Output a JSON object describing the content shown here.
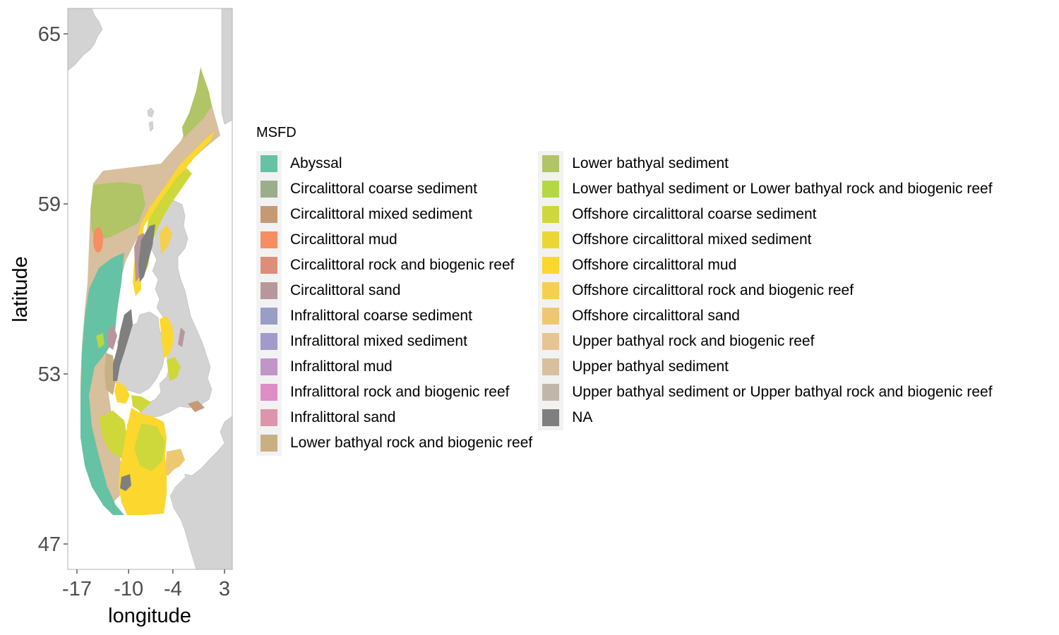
{
  "map": {
    "xlabel": "longitude",
    "ylabel": "latitude",
    "x_ticks": [
      "-17",
      "-10",
      "-4",
      "3"
    ],
    "y_ticks": [
      "65",
      "59",
      "53",
      "47"
    ],
    "x_range": [
      -18,
      4
    ],
    "y_range": [
      46,
      66
    ],
    "land_color": "#d3d3d3",
    "panel_background": "#ffffff"
  },
  "legend": {
    "title": "MSFD",
    "columns": [
      [
        {
          "label": "Abyssal",
          "color": "#66c2a5"
        },
        {
          "label": "Circalittoral coarse sediment",
          "color": "#9aae8c"
        },
        {
          "label": "Circalittoral mixed sediment",
          "color": "#c49a74"
        },
        {
          "label": "Circalittoral mud",
          "color": "#f58e62"
        },
        {
          "label": "Circalittoral rock and biogenic reef",
          "color": "#dc8e79"
        },
        {
          "label": "Circalittoral sand",
          "color": "#b8979c"
        },
        {
          "label": "Infralittoral coarse sediment",
          "color": "#9a9dc4"
        },
        {
          "label": "Infralittoral mixed sediment",
          "color": "#a29acb"
        },
        {
          "label": "Infralittoral mud",
          "color": "#c195c8"
        },
        {
          "label": "Infralittoral rock and biogenic reef",
          "color": "#dc8ec5"
        },
        {
          "label": "Infralittoral sand",
          "color": "#dd95ac"
        },
        {
          "label": "Lower bathyal rock and biogenic reef",
          "color": "#c8b084"
        }
      ],
      [
        {
          "label": "Lower bathyal sediment",
          "color": "#b1c466"
        },
        {
          "label": "Lower bathyal sediment or Lower bathyal rock and biogenic reef",
          "color": "#b5d744"
        },
        {
          "label": "Offshore circalittoral coarse sediment",
          "color": "#cfd83a"
        },
        {
          "label": "Offshore circalittoral mixed sediment",
          "color": "#ead735"
        },
        {
          "label": "Offshore circalittoral mud",
          "color": "#fcd72e"
        },
        {
          "label": "Offshore circalittoral rock and biogenic reef",
          "color": "#f4d04e"
        },
        {
          "label": "Offshore circalittoral sand",
          "color": "#eec871"
        },
        {
          "label": "Upper bathyal rock and biogenic reef",
          "color": "#e6c493"
        },
        {
          "label": "Upper bathyal sediment",
          "color": "#d8bf9d"
        },
        {
          "label": "Upper bathyal sediment or Upper bathyal rock and biogenic reef",
          "color": "#c0b7aa"
        },
        {
          "label": "NA",
          "color": "#7f7f7f"
        }
      ]
    ]
  }
}
